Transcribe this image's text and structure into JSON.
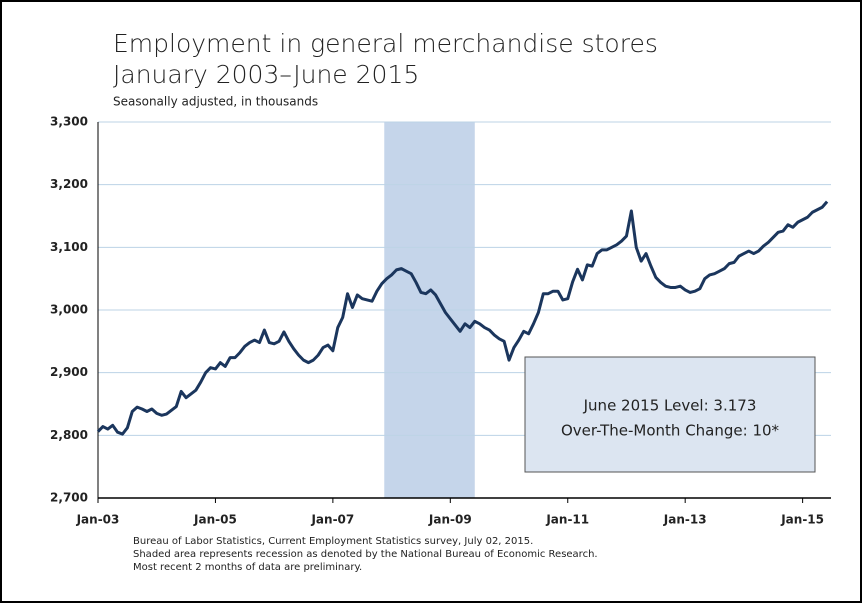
{
  "chart_data": {
    "type": "line",
    "title": [
      "Employment in general merchandise stores",
      "January 2003–June 2015"
    ],
    "subtitle": "Seasonally adjusted, in thousands",
    "categories": [
      "Jan-03",
      null,
      null,
      null,
      null,
      null,
      null,
      null,
      null,
      null,
      null,
      null,
      null,
      null,
      null,
      null,
      null,
      null,
      null,
      null,
      null,
      null,
      null,
      null,
      "Jan-05",
      null,
      null,
      null,
      null,
      null,
      null,
      null,
      null,
      null,
      null,
      null,
      null,
      null,
      null,
      null,
      null,
      null,
      null,
      null,
      null,
      null,
      null,
      null,
      "Jan-07",
      null,
      null,
      null,
      null,
      null,
      null,
      null,
      null,
      null,
      null,
      null,
      null,
      null,
      null,
      null,
      null,
      null,
      null,
      null,
      null,
      null,
      null,
      null,
      "Jan-09",
      null,
      null,
      null,
      null,
      null,
      null,
      null,
      null,
      null,
      null,
      null,
      null,
      null,
      null,
      null,
      null,
      null,
      null,
      null,
      null,
      null,
      null,
      null,
      "Jan-11",
      null,
      null,
      null,
      null,
      null,
      null,
      null,
      null,
      null,
      null,
      null,
      null,
      null,
      null,
      null,
      null,
      null,
      null,
      null,
      null,
      null,
      null,
      null,
      "Jan-13",
      null,
      null,
      null,
      null,
      null,
      null,
      null,
      null,
      null,
      null,
      null,
      null,
      null,
      null,
      null,
      null,
      null,
      null,
      null,
      null,
      null,
      null,
      null,
      "Jan-15",
      null,
      null,
      null,
      null,
      null
    ],
    "series": [
      {
        "color": "#1b365d",
        "values": [
          2806,
          2814,
          2810,
          2816,
          2805,
          2802,
          2812,
          2838,
          2845,
          2842,
          2838,
          2842,
          2835,
          2832,
          2834,
          2840,
          2846,
          2870,
          2860,
          2866,
          2872,
          2885,
          2900,
          2908,
          2906,
          2916,
          2910,
          2924,
          2924,
          2932,
          2942,
          2948,
          2952,
          2948,
          2968,
          2948,
          2946,
          2950,
          2965,
          2950,
          2938,
          2928,
          2920,
          2916,
          2920,
          2928,
          2940,
          2944,
          2935,
          2972,
          2988,
          3026,
          3004,
          3024,
          3018,
          3016,
          3014,
          3030,
          3042,
          3050,
          3056,
          3064,
          3066,
          3062,
          3058,
          3044,
          3028,
          3026,
          3032,
          3024,
          3010,
          2996,
          2986,
          2976,
          2966,
          2978,
          2972,
          2982,
          2978,
          2972,
          2968,
          2960,
          2954,
          2950,
          2920,
          2940,
          2952,
          2966,
          2962,
          2978,
          2996,
          3026,
          3026,
          3030,
          3030,
          3016,
          3018,
          3045,
          3065,
          3048,
          3072,
          3070,
          3090,
          3096,
          3096,
          3100,
          3104,
          3110,
          3118,
          3158,
          3100,
          3078,
          3090,
          3070,
          3052,
          3044,
          3038,
          3036,
          3036,
          3038,
          3032,
          3028,
          3030,
          3034,
          3050,
          3056,
          3058,
          3062,
          3066,
          3074,
          3076,
          3086,
          3090,
          3094,
          3090,
          3094,
          3102,
          3108,
          3116,
          3124,
          3126,
          3136,
          3132,
          3140,
          3144,
          3148,
          3156,
          3160,
          3164,
          3173
        ]
      }
    ],
    "recession": [
      59,
      77
    ],
    "recession_color": "#c5d5ea",
    "ylim": [
      2700,
      3300
    ],
    "yticks": [
      {
        "value": 2700,
        "label": "2,700"
      },
      {
        "value": 2800,
        "label": "2,800"
      },
      {
        "value": 2900,
        "label": "2,900"
      },
      {
        "value": 3000,
        "label": "3,000"
      },
      {
        "value": 3100,
        "label": "3,100"
      },
      {
        "value": 3200,
        "label": "3,200"
      },
      {
        "value": 3300,
        "label": "3,300"
      }
    ],
    "grid": true,
    "annotation": [
      "June 2015 Level: 3.173",
      "Over-The-Month Change: 10*"
    ],
    "notes": [
      "Bureau of Labor Statistics, Current Employment Statistics survey, July 02, 2015.",
      "Shaded area represents recession as denoted by the National Bureau of Economic Research.",
      "Most recent 2 months of data are preliminary."
    ]
  }
}
